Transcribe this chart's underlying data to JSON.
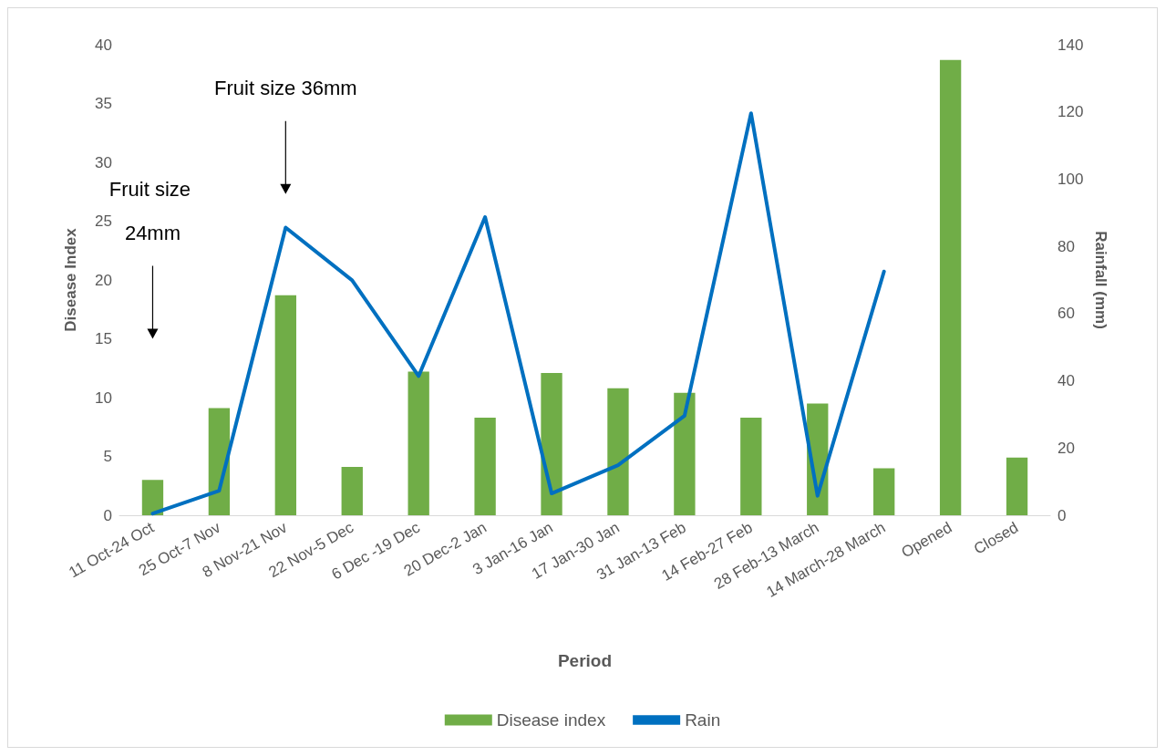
{
  "chart_data": {
    "type": "bar",
    "xlabel": "Period",
    "ylabel": "Disease Index",
    "y2label": "Rainfall (mm)",
    "categories": [
      "11 Oct-24 Oct",
      "25 Oct-7 Nov",
      "8 Nov-21 Nov",
      "22 Nov-5 Dec",
      "6 Dec -19 Dec",
      "20 Dec-2 Jan",
      "3 Jan-16 Jan",
      "17 Jan-30 Jan",
      "31 Jan-13 Feb",
      "14 Feb-27 Feb",
      "28 Feb-13 March",
      "14 March-28 March",
      "Opened",
      "Closed"
    ],
    "series": [
      {
        "name": "Disease index",
        "color": "#70ad47",
        "values": [
          3.0,
          9.1,
          18.7,
          4.1,
          12.2,
          8.3,
          12.1,
          10.8,
          10.4,
          8.3,
          9.5,
          4.0,
          38.7,
          4.9
        ]
      },
      {
        "name": "Rain",
        "type": "line",
        "axis": "y2",
        "color": "#0070c0",
        "values": [
          0.5,
          7.3,
          85.6,
          69.9,
          41.4,
          88.7,
          6.5,
          14.9,
          29.6,
          119.6,
          5.8,
          72.5,
          null,
          null
        ]
      }
    ],
    "ylim": [
      0,
      40
    ],
    "yticks": [
      0,
      5,
      10,
      15,
      20,
      25,
      30,
      35,
      40
    ],
    "y2lim": [
      0,
      140
    ],
    "y2ticks": [
      0,
      20,
      40,
      60,
      80,
      100,
      120,
      140
    ],
    "annotations": [
      "Fruit size 36mm",
      "Fruit size 24mm"
    ],
    "grid": false,
    "legend": "bottom",
    "marker": "none",
    "line_style": "solid"
  }
}
